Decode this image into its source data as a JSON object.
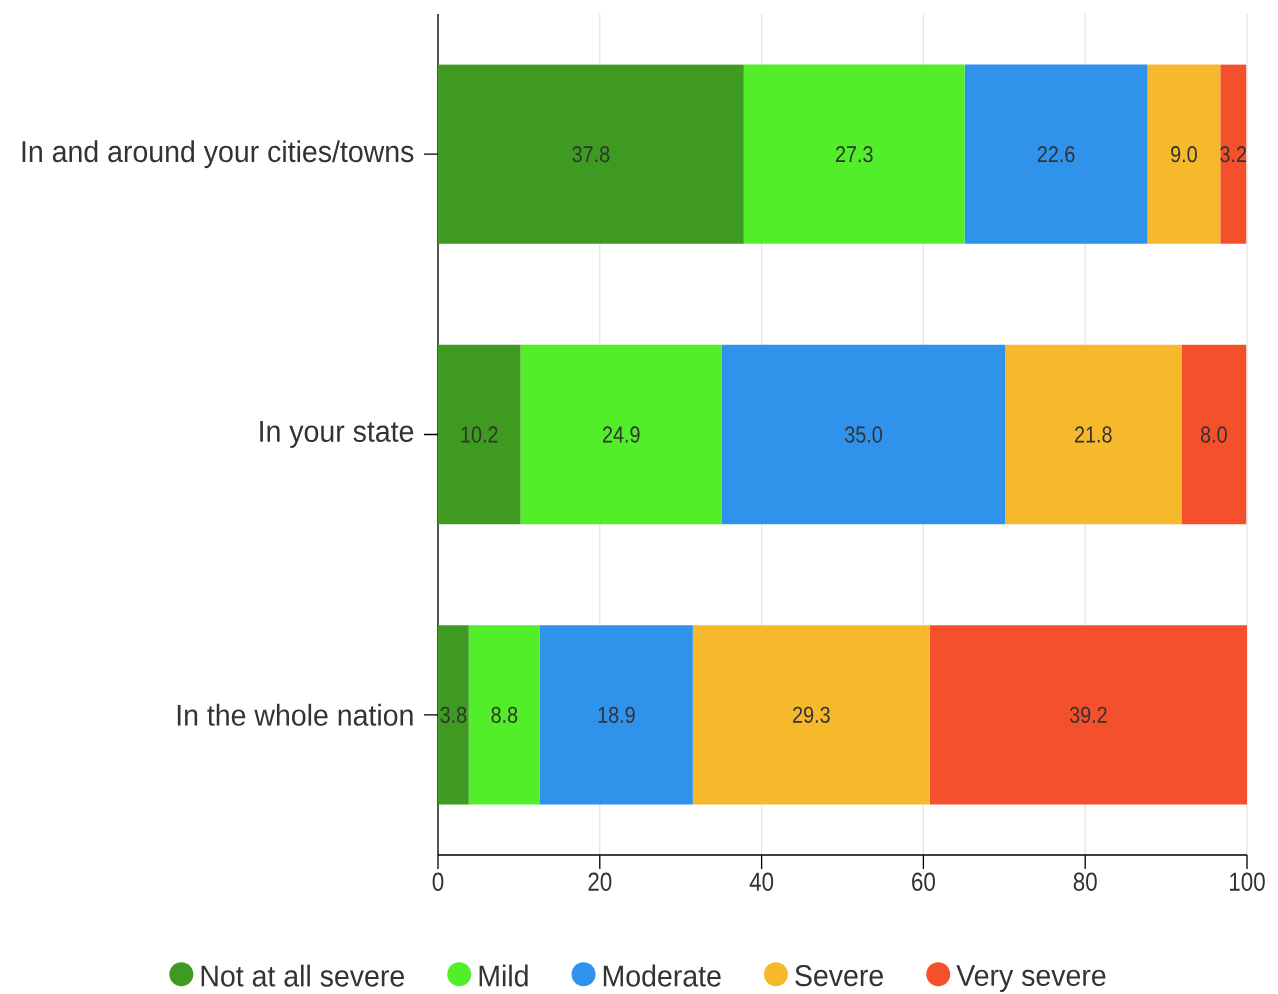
{
  "chart_data": {
    "type": "bar",
    "orientation": "horizontal",
    "stacked": true,
    "categories": [
      "In and around your cities/towns",
      "In your state",
      "In the whole nation"
    ],
    "series": [
      {
        "name": "Not at all severe",
        "color": "#3f9a22",
        "values": [
          37.8,
          10.2,
          3.8
        ],
        "value_labels": [
          "37.8",
          "10.2",
          "3.8"
        ]
      },
      {
        "name": "Mild",
        "color": "#51ee29",
        "values": [
          27.3,
          24.9,
          8.8
        ],
        "value_labels": [
          "27.3",
          "24.9",
          "8.8"
        ]
      },
      {
        "name": "Moderate",
        "color": "#2f93eb",
        "values": [
          22.6,
          35.0,
          18.9
        ],
        "value_labels": [
          "22.6",
          "35.0",
          "18.9"
        ]
      },
      {
        "name": "Severe",
        "color": "#f6b92c",
        "values": [
          9.0,
          21.8,
          29.3
        ],
        "value_labels": [
          "9.0",
          "21.8",
          "29.3"
        ]
      },
      {
        "name": "Very severe",
        "color": "#f5502c",
        "values": [
          3.2,
          8.0,
          39.2
        ],
        "value_labels": [
          "3.2",
          "8.0",
          "39.2"
        ]
      }
    ],
    "xlim": [
      0,
      100
    ],
    "xticks": [
      0,
      20,
      40,
      60,
      80,
      100
    ],
    "grid": "x",
    "legend": "bottom"
  }
}
